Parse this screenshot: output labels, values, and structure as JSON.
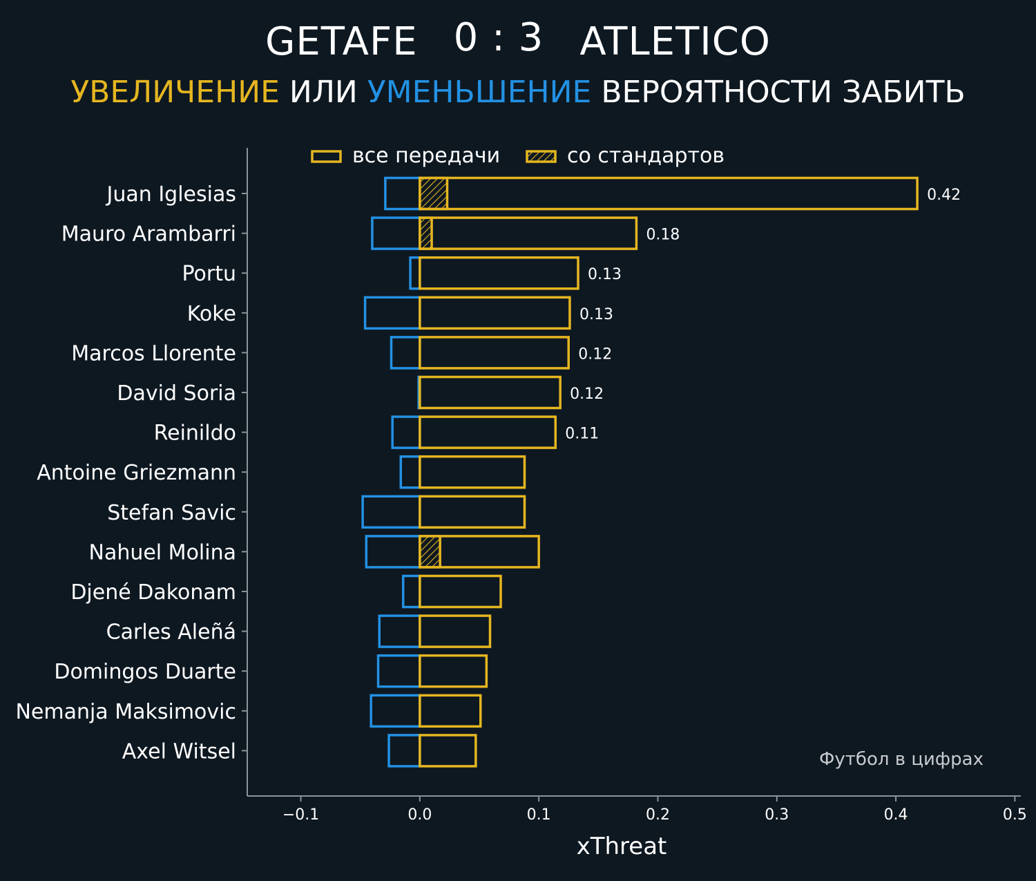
{
  "header": {
    "home_team": "GETAFE",
    "score": "0 : 3",
    "away_team": "ATLETICO",
    "subtitle_increase": "УВЕЛИЧЕНИЕ",
    "subtitle_or": "ИЛИ",
    "subtitle_decrease": "УМЕНЬШЕНИЕ",
    "subtitle_rest": "ВЕРОЯТНОСТИ ЗАБИТЬ"
  },
  "legend": {
    "all_passes": "все передачи",
    "set_pieces": "со стандартов"
  },
  "credit": "Футбол в цифрах",
  "colors": {
    "background": "#0e1821",
    "increase": "#e5b620",
    "decrease": "#2391e3",
    "axis": "#8a9499"
  },
  "chart_data": {
    "type": "bar",
    "orientation": "horizontal",
    "xlabel": "xThreat",
    "xlim": [
      -0.145,
      0.505
    ],
    "xticks": [
      -0.1,
      0.0,
      0.1,
      0.2,
      0.3,
      0.4,
      0.5
    ],
    "xtick_labels": [
      "−0.1",
      "0.0",
      "0.1",
      "0.2",
      "0.3",
      "0.4",
      "0.5"
    ],
    "grid": false,
    "legend_position": "top",
    "categories": [
      "Juan Iglesias",
      "Mauro Arambarri",
      "Portu",
      "Koke",
      "Marcos Llorente",
      "David Soria",
      "Reinildo",
      "Antoine Griezmann",
      "Stefan Savic",
      "Nahuel Molina",
      "Djené Dakonam",
      "Carles Aleñá",
      "Domingos Duarte",
      "Nemanja Maksimovic",
      "Axel Witsel"
    ],
    "series": [
      {
        "name": "все передачи",
        "role": "increase",
        "values": [
          0.418,
          0.182,
          0.133,
          0.126,
          0.125,
          0.118,
          0.114,
          0.088,
          0.088,
          0.1,
          0.068,
          0.059,
          0.056,
          0.051,
          0.047
        ]
      },
      {
        "name": "со стандартов",
        "role": "set_pieces",
        "values": [
          0.023,
          0.01,
          0.0,
          0.0,
          0.0,
          0.0,
          0.0,
          0.0,
          0.0,
          0.017,
          0.0,
          0.0,
          0.0,
          0.0,
          0.0
        ]
      },
      {
        "role": "decrease",
        "values": [
          -0.029,
          -0.04,
          -0.008,
          -0.046,
          -0.024,
          -0.001,
          -0.023,
          -0.016,
          -0.048,
          -0.045,
          -0.014,
          -0.034,
          -0.035,
          -0.041,
          -0.026
        ]
      }
    ],
    "value_labels": [
      "0.42",
      "0.18",
      "0.13",
      "0.13",
      "0.12",
      "0.12",
      "0.11",
      "",
      "",
      "",
      "",
      "",
      "",
      "",
      ""
    ]
  }
}
